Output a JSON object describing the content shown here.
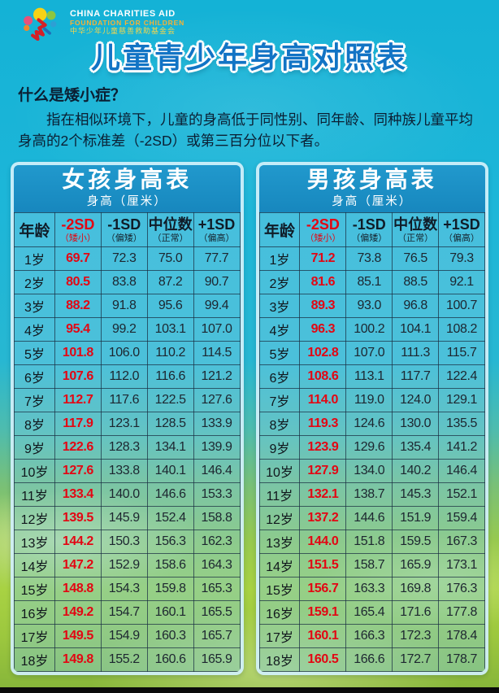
{
  "poster": {
    "logo": {
      "line1": "CHINA CHARITIES AID",
      "line2": "FOUNDATION FOR CHILDREN",
      "line3": "中华少年儿童慈善救助基金会"
    },
    "title": "儿童青少年身高对照表",
    "intro": {
      "heading": "什么是矮小症？",
      "body": "指在相似环境下，儿童的身高低于同性别、同年龄、同种族儿童平均身高的2个标准差（-2SD）或第三百分位以下者。"
    }
  },
  "columns": {
    "age": "年龄",
    "sd_minus2": "-2SD",
    "sd_minus2_note": "（矮小）",
    "sd_minus1": "-1SD",
    "sd_minus1_note": "（偏矮）",
    "median": "中位数",
    "median_note": "（正常）",
    "sd_plus1": "+1SD",
    "sd_plus1_note": "（偏高）"
  },
  "girls_table": {
    "title": "女孩身高表",
    "subtitle": "身高（厘米）",
    "rows": [
      [
        "1岁",
        "69.7",
        "72.3",
        "75.0",
        "77.7"
      ],
      [
        "2岁",
        "80.5",
        "83.8",
        "87.2",
        "90.7"
      ],
      [
        "3岁",
        "88.2",
        "91.8",
        "95.6",
        "99.4"
      ],
      [
        "4岁",
        "95.4",
        "99.2",
        "103.1",
        "107.0"
      ],
      [
        "5岁",
        "101.8",
        "106.0",
        "110.2",
        "114.5"
      ],
      [
        "6岁",
        "107.6",
        "112.0",
        "116.6",
        "121.2"
      ],
      [
        "7岁",
        "112.7",
        "117.6",
        "122.5",
        "127.6"
      ],
      [
        "8岁",
        "117.9",
        "123.1",
        "128.5",
        "133.9"
      ],
      [
        "9岁",
        "122.6",
        "128.3",
        "134.1",
        "139.9"
      ],
      [
        "10岁",
        "127.6",
        "133.8",
        "140.1",
        "146.4"
      ],
      [
        "11岁",
        "133.4",
        "140.0",
        "146.6",
        "153.3"
      ],
      [
        "12岁",
        "139.5",
        "145.9",
        "152.4",
        "158.8"
      ],
      [
        "13岁",
        "144.2",
        "150.3",
        "156.3",
        "162.3"
      ],
      [
        "14岁",
        "147.2",
        "152.9",
        "158.6",
        "164.3"
      ],
      [
        "15岁",
        "148.8",
        "154.3",
        "159.8",
        "165.3"
      ],
      [
        "16岁",
        "149.2",
        "154.7",
        "160.1",
        "165.5"
      ],
      [
        "17岁",
        "149.5",
        "154.9",
        "160.3",
        "165.7"
      ],
      [
        "18岁",
        "149.8",
        "155.2",
        "160.6",
        "165.9"
      ]
    ]
  },
  "boys_table": {
    "title": "男孩身高表",
    "subtitle": "身高（厘米）",
    "rows": [
      [
        "1岁",
        "71.2",
        "73.8",
        "76.5",
        "79.3"
      ],
      [
        "2岁",
        "81.6",
        "85.1",
        "88.5",
        "92.1"
      ],
      [
        "3岁",
        "89.3",
        "93.0",
        "96.8",
        "100.7"
      ],
      [
        "4岁",
        "96.3",
        "100.2",
        "104.1",
        "108.2"
      ],
      [
        "5岁",
        "102.8",
        "107.0",
        "111.3",
        "115.7"
      ],
      [
        "6岁",
        "108.6",
        "113.1",
        "117.7",
        "122.4"
      ],
      [
        "7岁",
        "114.0",
        "119.0",
        "124.0",
        "129.1"
      ],
      [
        "8岁",
        "119.3",
        "124.6",
        "130.0",
        "135.5"
      ],
      [
        "9岁",
        "123.9",
        "129.6",
        "135.4",
        "141.2"
      ],
      [
        "10岁",
        "127.9",
        "134.0",
        "140.2",
        "146.4"
      ],
      [
        "11岁",
        "132.1",
        "138.7",
        "145.3",
        "152.1"
      ],
      [
        "12岁",
        "137.2",
        "144.6",
        "151.9",
        "159.4"
      ],
      [
        "13岁",
        "144.0",
        "151.8",
        "159.5",
        "167.3"
      ],
      [
        "14岁",
        "151.5",
        "158.7",
        "165.9",
        "173.1"
      ],
      [
        "15岁",
        "156.7",
        "163.3",
        "169.8",
        "176.3"
      ],
      [
        "16岁",
        "159.1",
        "165.4",
        "171.6",
        "177.8"
      ],
      [
        "17岁",
        "160.1",
        "166.3",
        "172.3",
        "178.4"
      ],
      [
        "18岁",
        "160.5",
        "166.6",
        "172.7",
        "178.7"
      ]
    ]
  },
  "colors": {
    "background_cyan": "#1db4d6",
    "title_blue": "#1274c5",
    "table_header_blue": "#1b93c8",
    "accent_red": "#e30613",
    "grass_green": "#9cc73e"
  }
}
